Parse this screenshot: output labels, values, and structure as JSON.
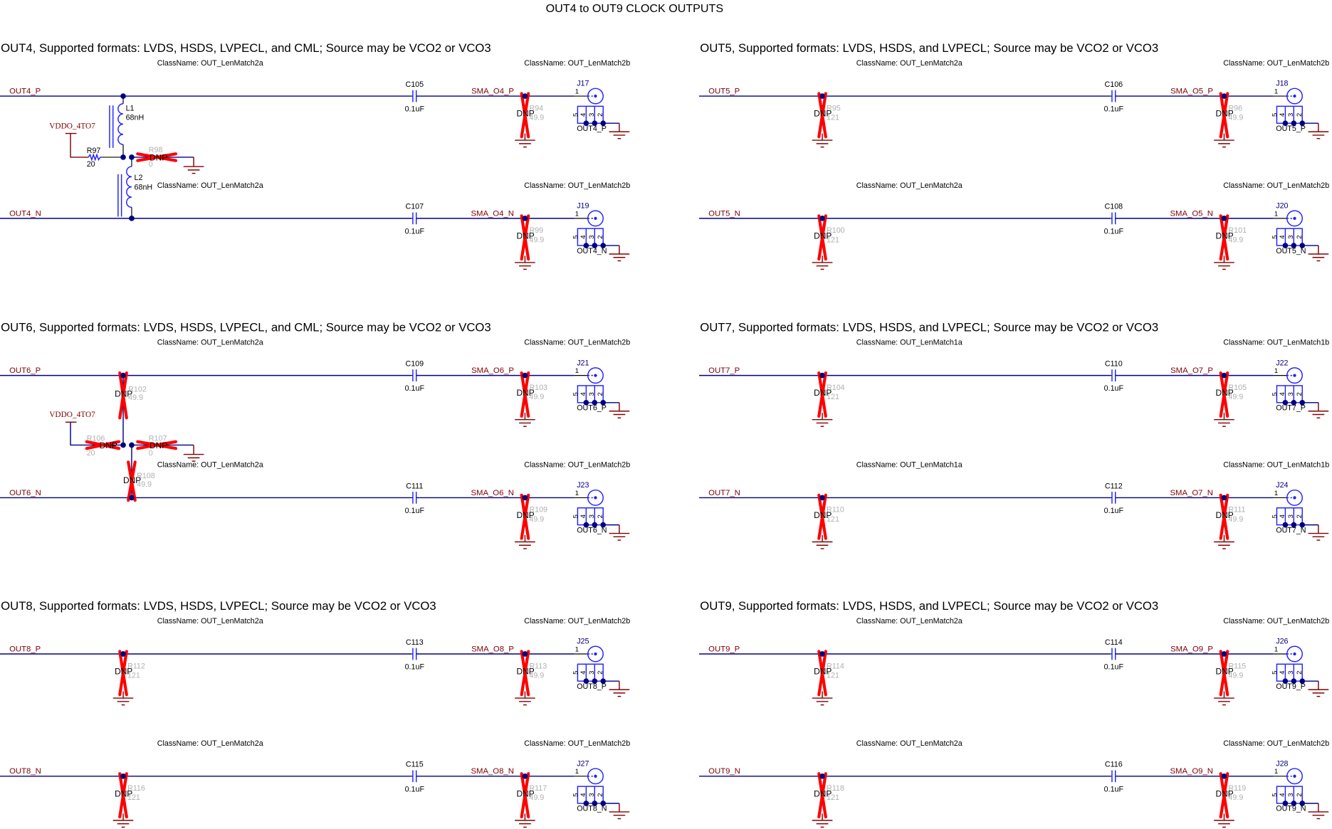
{
  "title": "OUT4 to OUT9 CLOCK OUTPUTS",
  "colors": {
    "wire": "#000080",
    "net_label": "#800000",
    "dnp_cross": "#ff0000",
    "component": "#2020ff",
    "ref_inactive": "#b0b0b0"
  },
  "dnp_label": "DNP",
  "class_prefix": "ClassName: ",
  "sections": [
    {
      "title": "OUT4, Supported formats: LVDS, HSDS, LVPECL, and CML; Source may be VCO2 or VCO3",
      "rows": [
        {
          "net": "OUT4_P",
          "class_a": "ClassName: OUT_LenMatch2a",
          "class_b": "ClassName: OUT_LenMatch2b",
          "cap_ref": "C105",
          "cap_value": "0.1uF",
          "sma_net": "SMA_O4_P",
          "term_ref": "R94",
          "term_value": "49.9",
          "conn_ref": "J17",
          "conn_label": "OUT4_P",
          "pins": [
            "1",
            "5",
            "4",
            "3",
            "2"
          ]
        },
        {
          "net": "OUT4_N",
          "class_a": "ClassName: OUT_LenMatch2a",
          "class_b": "ClassName: OUT_LenMatch2b",
          "cap_ref": "C107",
          "cap_value": "0.1uF",
          "sma_net": "SMA_O4_N",
          "term_ref": "R99",
          "term_value": "49.9",
          "conn_ref": "J19",
          "conn_label": "OUT4_N",
          "pins": [
            "1",
            "5",
            "4",
            "3",
            "2"
          ]
        }
      ],
      "bias": {
        "supply": "VDDO_4TO7",
        "l1_ref": "L1",
        "l1_value": "68nH",
        "l2_ref": "L2",
        "l2_value": "68nH",
        "r_supply_ref": "R97",
        "r_supply_value": "20",
        "r_gnd_ref": "R98",
        "r_gnd_value": "0"
      }
    },
    {
      "title": "OUT5, Supported formats: LVDS, HSDS, and LVPECL; Source may be VCO2 or VCO3",
      "rows": [
        {
          "net": "OUT5_P",
          "class_a": "ClassName: OUT_LenMatch2a",
          "class_b": "ClassName: OUT_LenMatch2b",
          "shunt_ref": "R95",
          "shunt_value": "121",
          "cap_ref": "C106",
          "cap_value": "0.1uF",
          "sma_net": "SMA_O5_P",
          "term_ref": "R96",
          "term_value": "49.9",
          "conn_ref": "J18",
          "conn_label": "OUT5_P",
          "pins": [
            "1",
            "5",
            "4",
            "3",
            "2"
          ]
        },
        {
          "net": "OUT5_N",
          "class_a": "ClassName: OUT_LenMatch2a",
          "class_b": "ClassName: OUT_LenMatch2b",
          "shunt_ref": "R100",
          "shunt_value": "121",
          "cap_ref": "C108",
          "cap_value": "0.1uF",
          "sma_net": "SMA_O5_N",
          "term_ref": "R101",
          "term_value": "49.9",
          "conn_ref": "J20",
          "conn_label": "OUT5_N",
          "pins": [
            "1",
            "5",
            "4",
            "3",
            "2"
          ]
        }
      ]
    },
    {
      "title": "OUT6, Supported formats: LVDS, HSDS, LVPECL, and CML; Source may be VCO2 or VCO3",
      "rows": [
        {
          "net": "OUT6_P",
          "class_a": "ClassName: OUT_LenMatch2a",
          "class_b": "ClassName: OUT_LenMatch2b",
          "cap_ref": "C109",
          "cap_value": "0.1uF",
          "sma_net": "SMA_O6_P",
          "term_ref": "R103",
          "term_value": "49.9",
          "conn_ref": "J21",
          "conn_label": "OUT6_P",
          "pins": [
            "1",
            "5",
            "4",
            "3",
            "2"
          ]
        },
        {
          "net": "OUT6_N",
          "class_a": "ClassName: OUT_LenMatch2a",
          "class_b": "ClassName: OUT_LenMatch2b",
          "cap_ref": "C111",
          "cap_value": "0.1uF",
          "sma_net": "SMA_O6_N",
          "term_ref": "R109",
          "term_value": "49.9",
          "conn_ref": "J23",
          "conn_label": "OUT6_N",
          "pins": [
            "1",
            "5",
            "4",
            "3",
            "2"
          ]
        }
      ],
      "bias_dnp": {
        "supply": "VDDO_4TO7",
        "r_p_ref": "R102",
        "r_p_value": "49.9",
        "r_n_ref": "R108",
        "r_n_value": "49.9",
        "r_supply_ref": "R106",
        "r_supply_value": "20",
        "r_gnd_ref": "R107",
        "r_gnd_value": "0"
      }
    },
    {
      "title": "OUT7, Supported formats: LVDS, HSDS, and LVPECL; Source may be VCO2 or VCO3",
      "rows": [
        {
          "net": "OUT7_P",
          "class_a": "ClassName: OUT_LenMatch1a",
          "class_b": "ClassName: OUT_LenMatch1b",
          "shunt_ref": "R104",
          "shunt_value": "121",
          "cap_ref": "C110",
          "cap_value": "0.1uF",
          "sma_net": "SMA_O7_P",
          "term_ref": "R105",
          "term_value": "49.9",
          "conn_ref": "J22",
          "conn_label": "OUT7_P",
          "pins": [
            "1",
            "5",
            "4",
            "3",
            "2"
          ]
        },
        {
          "net": "OUT7_N",
          "class_a": "ClassName: OUT_LenMatch1a",
          "class_b": "ClassName: OUT_LenMatch1b",
          "shunt_ref": "R110",
          "shunt_value": "121",
          "cap_ref": "C112",
          "cap_value": "0.1uF",
          "sma_net": "SMA_O7_N",
          "term_ref": "R111",
          "term_value": "49.9",
          "conn_ref": "J24",
          "conn_label": "OUT7_N",
          "pins": [
            "1",
            "5",
            "4",
            "3",
            "2"
          ]
        }
      ]
    },
    {
      "title": "OUT8, Supported formats: LVDS, HSDS, LVPECL; Source may be VCO2 or VCO3",
      "rows": [
        {
          "net": "OUT8_P",
          "class_a": "ClassName: OUT_LenMatch2a",
          "class_b": "ClassName: OUT_LenMatch2b",
          "shunt_ref": "R112",
          "shunt_value": "121",
          "cap_ref": "C113",
          "cap_value": "0.1uF",
          "sma_net": "SMA_O8_P",
          "term_ref": "R113",
          "term_value": "49.9",
          "conn_ref": "J25",
          "conn_label": "OUT8_P",
          "pins": [
            "1",
            "5",
            "4",
            "3",
            "2"
          ]
        },
        {
          "net": "OUT8_N",
          "class_a": "ClassName: OUT_LenMatch2a",
          "class_b": "ClassName: OUT_LenMatch2b",
          "shunt_ref": "R116",
          "shunt_value": "121",
          "cap_ref": "C115",
          "cap_value": "0.1uF",
          "sma_net": "SMA_O8_N",
          "term_ref": "R117",
          "term_value": "49.9",
          "conn_ref": "J27",
          "conn_label": "OUT8_N",
          "pins": [
            "1",
            "5",
            "4",
            "3",
            "2"
          ]
        }
      ]
    },
    {
      "title": "OUT9, Supported formats: LVDS, HSDS, and LVPECL; Source may be VCO2 or VCO3",
      "rows": [
        {
          "net": "OUT9_P",
          "class_a": "ClassName: OUT_LenMatch2a",
          "class_b": "ClassName: OUT_LenMatch2b",
          "shunt_ref": "R114",
          "shunt_value": "121",
          "cap_ref": "C114",
          "cap_value": "0.1uF",
          "sma_net": "SMA_O9_P",
          "term_ref": "R115",
          "term_value": "49.9",
          "conn_ref": "J26",
          "conn_label": "OUT9_P",
          "pins": [
            "1",
            "5",
            "4",
            "3",
            "2"
          ]
        },
        {
          "net": "OUT9_N",
          "class_a": "ClassName: OUT_LenMatch2a",
          "class_b": "ClassName: OUT_LenMatch2b",
          "shunt_ref": "R118",
          "shunt_value": "121",
          "cap_ref": "C116",
          "cap_value": "0.1uF",
          "sma_net": "SMA_O9_N",
          "term_ref": "R119",
          "term_value": "49.9",
          "conn_ref": "J28",
          "conn_label": "OUT9_N",
          "pins": [
            "1",
            "5",
            "4",
            "3",
            "2"
          ]
        }
      ]
    }
  ]
}
